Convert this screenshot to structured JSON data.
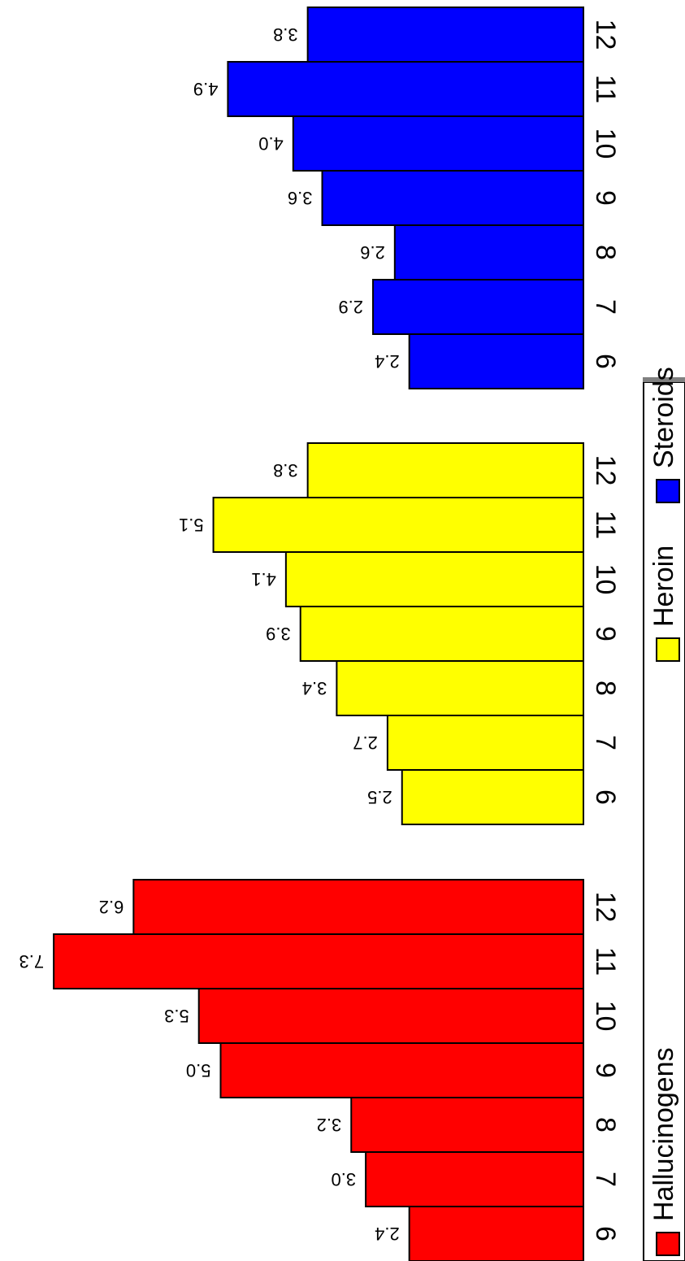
{
  "chart_data": {
    "type": "bar",
    "orientation": "horizontal",
    "categories": [
      "6",
      "7",
      "8",
      "9",
      "10",
      "11",
      "12"
    ],
    "series": [
      {
        "name": "Hallucinogens",
        "color": "#ff0000",
        "values": [
          2.4,
          3.0,
          3.2,
          5.0,
          5.3,
          7.3,
          6.2
        ],
        "labels": [
          "2.4",
          "3.0",
          "3.2",
          "5.0",
          "5.3",
          "7.3",
          "6.2"
        ]
      },
      {
        "name": "Heroin",
        "color": "#ffff00",
        "values": [
          2.5,
          2.7,
          3.4,
          3.9,
          4.1,
          5.1,
          3.8
        ],
        "labels": [
          "2.5",
          "2.7",
          "3.4",
          "3.9",
          "4.1",
          "5.1",
          "3.8"
        ]
      },
      {
        "name": "Steroids",
        "color": "#0000ff",
        "values": [
          2.4,
          2.9,
          2.6,
          3.6,
          4.0,
          4.9,
          3.8
        ],
        "labels": [
          "2.4",
          "2.9",
          "2.6",
          "3.6",
          "4.0",
          "4.9",
          "3.8"
        ]
      }
    ],
    "title": "",
    "xlabel": "",
    "ylabel": "",
    "xlim": [
      0,
      7.3
    ],
    "grid": false,
    "legend": "bottom"
  }
}
